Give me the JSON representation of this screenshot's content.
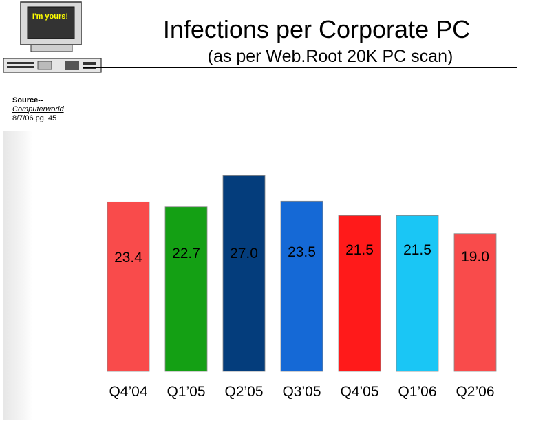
{
  "header": {
    "title": "Infections per Corporate PC",
    "subtitle": "(as per Web.Root 20K PC scan)"
  },
  "clipart": {
    "monitor_text": "I'm yours!"
  },
  "source": {
    "label": "Source--",
    "publication": "Computerworld",
    "citation": "8/7/06 pg. 45"
  },
  "chart_data": {
    "type": "bar",
    "categories": [
      "Q4’04",
      "Q1’05",
      "Q2’05",
      "Q3’05",
      "Q4’05",
      "Q1’06",
      "Q2’06"
    ],
    "values": [
      23.4,
      22.7,
      27.0,
      23.5,
      21.5,
      21.5,
      19.0
    ],
    "value_labels": [
      "23.4",
      "22.7",
      "27.0",
      "23.5",
      "21.5",
      "21.5",
      "19.0"
    ],
    "title": "Infections per Corporate PC",
    "subtitle": "(as per Web.Root 20K PC scan)",
    "xlabel": "",
    "ylabel": "",
    "colors": [
      "#f94b4b",
      "#14a014",
      "#043d7c",
      "#1569d6",
      "#ff1a1a",
      "#1ac6f5",
      "#f94b4b"
    ],
    "grid": false,
    "legend": "none"
  }
}
